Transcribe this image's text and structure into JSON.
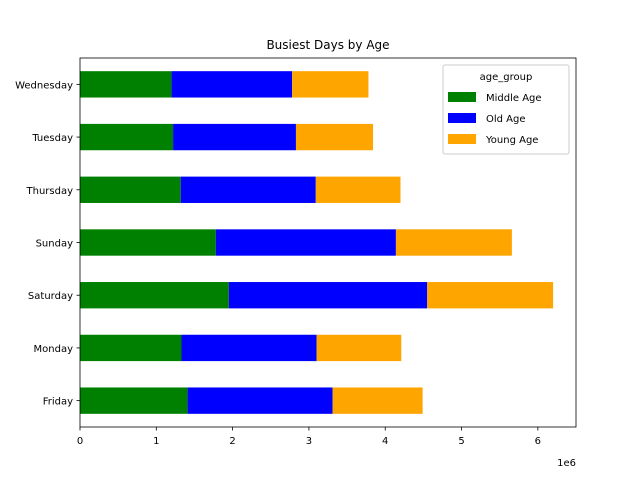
{
  "chart_data": {
    "type": "bar",
    "orientation": "horizontal",
    "stacked": true,
    "title": "Busiest Days by Age",
    "xlabel": "",
    "ylabel": "",
    "x_offset_label": "1e6",
    "categories": [
      "Friday",
      "Monday",
      "Saturday",
      "Sunday",
      "Thursday",
      "Tuesday",
      "Wednesday"
    ],
    "series": [
      {
        "name": "Middle Age",
        "color": "#008000",
        "values": [
          1410000,
          1330000,
          1950000,
          1780000,
          1320000,
          1220000,
          1200000
        ]
      },
      {
        "name": "Old Age",
        "color": "#0000ff",
        "values": [
          1900000,
          1770000,
          2600000,
          2360000,
          1770000,
          1610000,
          1580000
        ]
      },
      {
        "name": "Young Age",
        "color": "#ffa500",
        "values": [
          1180000,
          1110000,
          1650000,
          1520000,
          1110000,
          1010000,
          1000000
        ]
      }
    ],
    "xlim": [
      0,
      6500000
    ],
    "xticks": [
      0,
      1000000,
      2000000,
      3000000,
      4000000,
      5000000,
      6000000
    ],
    "xtick_labels": [
      "0",
      "1",
      "2",
      "3",
      "4",
      "5",
      "6"
    ],
    "grid": false,
    "legend": {
      "title": "age_group",
      "placement": "top-right"
    }
  }
}
